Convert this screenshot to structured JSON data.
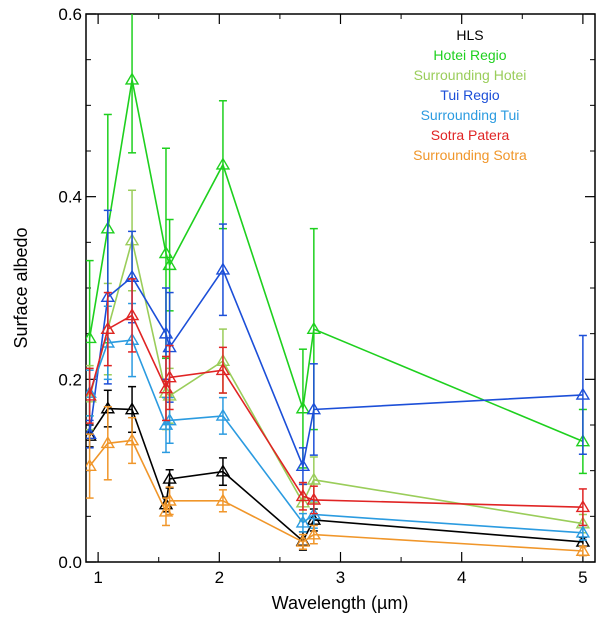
{
  "chart_data": {
    "type": "line",
    "title": "",
    "xlabel": "Wavelength (µm)",
    "ylabel": "Surface albedo",
    "xlim": [
      0.9,
      5.1
    ],
    "ylim": [
      0.0,
      0.6
    ],
    "xticks": [
      1,
      2,
      3,
      4,
      5
    ],
    "xtick_labels": [
      "1",
      "2",
      "3",
      "4",
      "5"
    ],
    "yticks": [
      0.0,
      0.2,
      0.4,
      0.6
    ],
    "ytick_labels": [
      "0.0",
      "0.2",
      "0.4",
      "0.6"
    ],
    "grid": false,
    "legend_position": "top-right",
    "marker": "triangle",
    "x": [
      0.93,
      1.08,
      1.28,
      1.56,
      1.59,
      2.03,
      2.69,
      2.78,
      5.0
    ],
    "series": [
      {
        "name": "HLS",
        "color": "#000000",
        "values": [
          0.138,
          0.168,
          0.167,
          0.063,
          0.091,
          0.099,
          0.023,
          0.046,
          0.022
        ],
        "errors": [
          0.012,
          0.02,
          0.025,
          0.008,
          0.01,
          0.015,
          0.01,
          0.012,
          0.005
        ]
      },
      {
        "name": "Hotei Regio",
        "color": "#1ed01e",
        "values": [
          0.245,
          0.365,
          0.528,
          0.338,
          0.325,
          0.435,
          0.168,
          0.255,
          0.132
        ],
        "errors": [
          0.085,
          0.125,
          0.08,
          0.115,
          0.05,
          0.07,
          0.065,
          0.11,
          0.035
        ]
      },
      {
        "name": "Surrounding Hotei",
        "color": "#9acd5a",
        "values": [
          0.18,
          0.255,
          0.352,
          0.185,
          0.182,
          0.22,
          0.065,
          0.09,
          0.042
        ],
        "errors": [
          0.035,
          0.05,
          0.055,
          0.04,
          0.03,
          0.035,
          0.02,
          0.025,
          0.01
        ]
      },
      {
        "name": "Tui Regio",
        "color": "#1c4fd8",
        "values": [
          0.14,
          0.29,
          0.312,
          0.25,
          0.235,
          0.32,
          0.105,
          0.167,
          0.183
        ],
        "errors": [
          0.015,
          0.095,
          0.05,
          0.05,
          0.06,
          0.05,
          0.02,
          0.05,
          0.065
        ]
      },
      {
        "name": "Surrounding Tui",
        "color": "#2b9be0",
        "values": [
          0.185,
          0.24,
          0.243,
          0.15,
          0.155,
          0.16,
          0.043,
          0.052,
          0.032
        ],
        "errors": [
          0.025,
          0.04,
          0.04,
          0.03,
          0.025,
          0.02,
          0.01,
          0.015,
          0.008
        ]
      },
      {
        "name": "Sotra Patera",
        "color": "#e02424",
        "values": [
          0.182,
          0.255,
          0.27,
          0.19,
          0.202,
          0.21,
          0.072,
          0.068,
          0.06
        ],
        "errors": [
          0.03,
          0.04,
          0.04,
          0.035,
          0.035,
          0.025,
          0.015,
          0.015,
          0.02
        ]
      },
      {
        "name": "Surrounding Sotra",
        "color": "#f0962a",
        "values": [
          0.105,
          0.13,
          0.133,
          0.055,
          0.067,
          0.067,
          0.022,
          0.03,
          0.012
        ],
        "errors": [
          0.035,
          0.04,
          0.025,
          0.015,
          0.015,
          0.012,
          0.008,
          0.01,
          0.005
        ]
      }
    ]
  }
}
